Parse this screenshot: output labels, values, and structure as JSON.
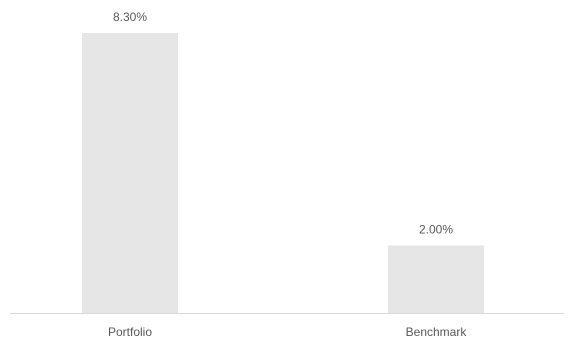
{
  "chart_data": {
    "type": "bar",
    "categories": [
      "Portfolio",
      "Benchmark"
    ],
    "values": [
      8.3,
      2.0
    ],
    "data_labels": [
      "8.30%",
      "2.00%"
    ],
    "title": "",
    "xlabel": "",
    "ylabel": "",
    "ylim": [
      0,
      8.3
    ],
    "grid": false,
    "legend": "none",
    "colors": {
      "bar": "#e7e6e6",
      "axis": "#d9d9d9",
      "text": "#595959"
    }
  }
}
